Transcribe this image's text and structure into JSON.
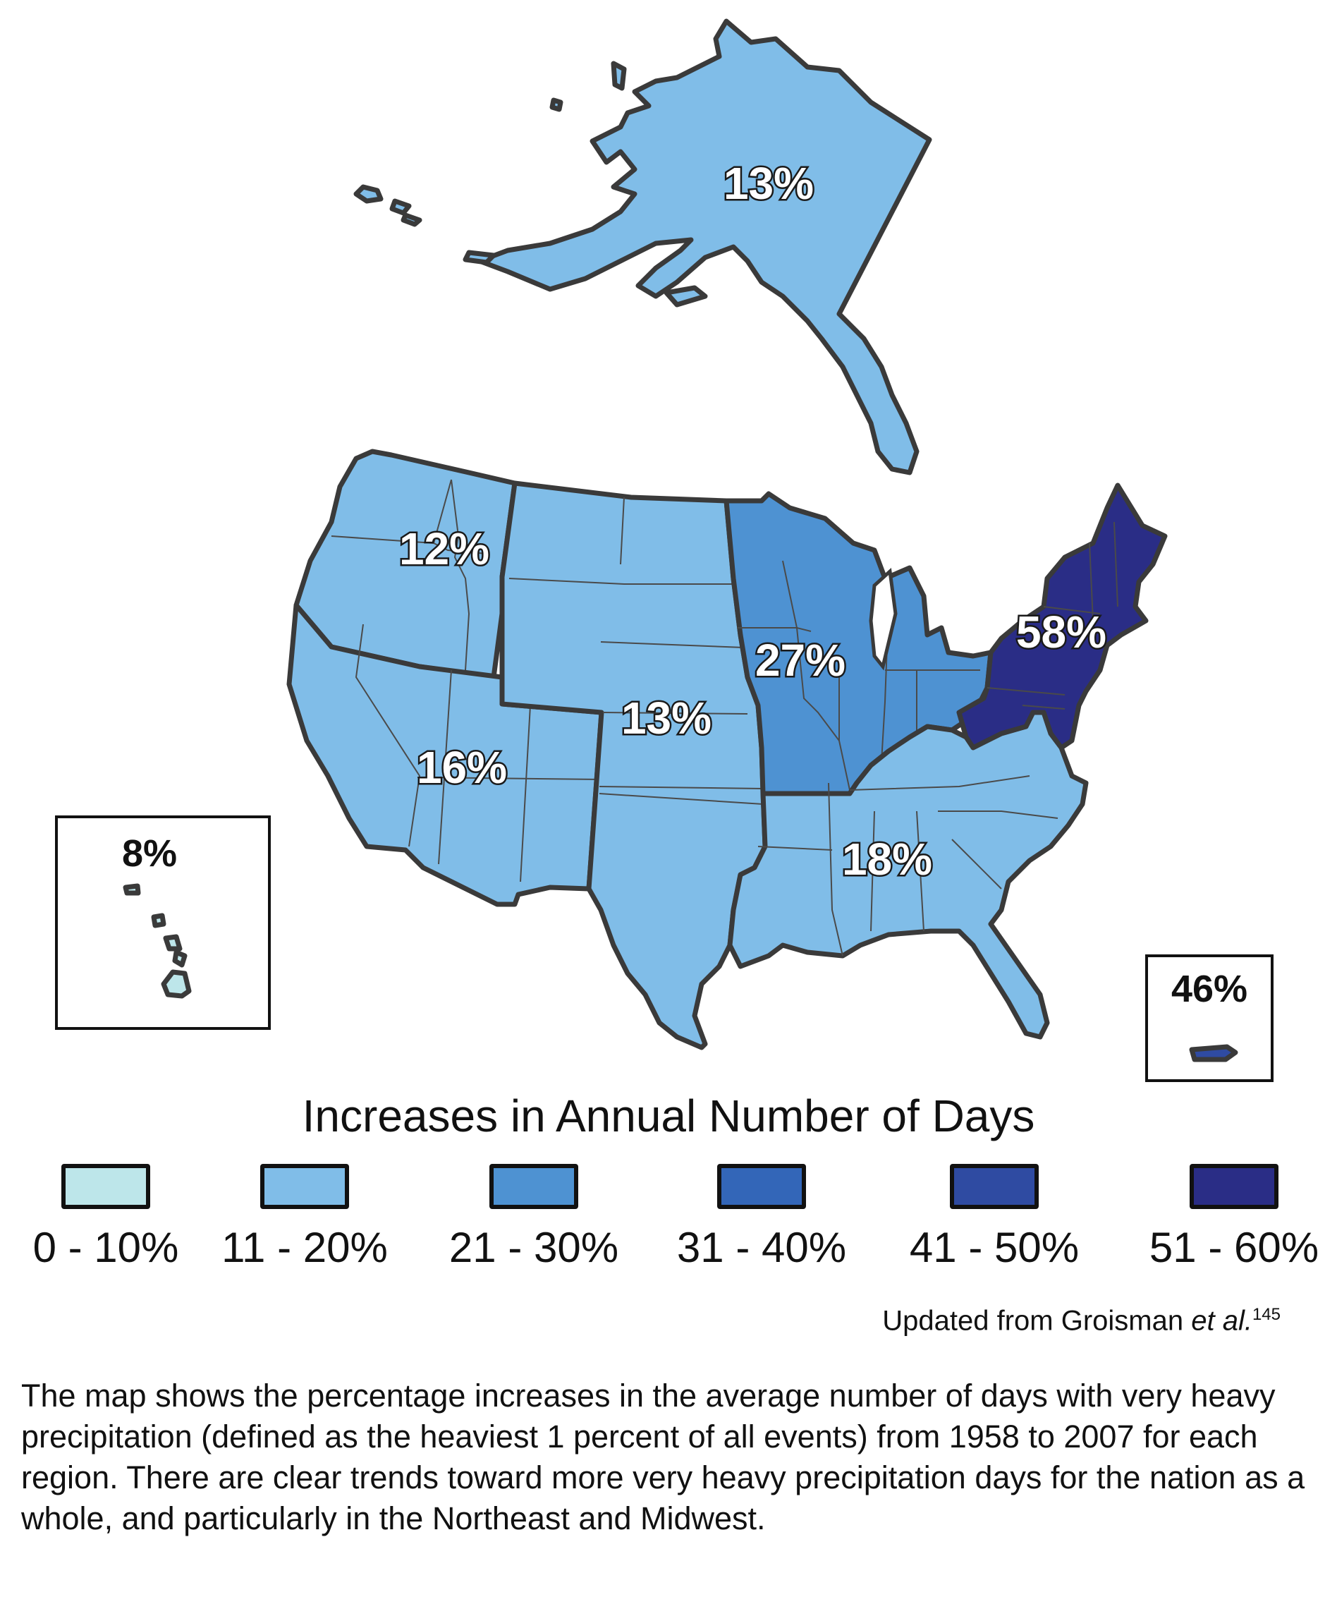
{
  "map": {
    "regions": [
      {
        "id": "alaska",
        "label": "13%",
        "color": "#80BDE8"
      },
      {
        "id": "northwest",
        "label": "12%",
        "color": "#80BDE8"
      },
      {
        "id": "southwest",
        "label": "16%",
        "color": "#80BDE8"
      },
      {
        "id": "great-plains",
        "label": "13%",
        "color": "#80BDE8"
      },
      {
        "id": "midwest",
        "label": "27%",
        "color": "#4E92D2"
      },
      {
        "id": "northeast",
        "label": "58%",
        "color": "#2A2D86"
      },
      {
        "id": "southeast",
        "label": "18%",
        "color": "#80BDE8"
      },
      {
        "id": "hawaii",
        "label": "8%",
        "color": "#BDE6EA"
      },
      {
        "id": "puerto-rico",
        "label": "46%",
        "color": "#2F4BA2"
      }
    ]
  },
  "legend": {
    "title": "Increases in Annual Number of Days",
    "items": [
      {
        "label": "0 - 10%",
        "color": "#BDE6EA"
      },
      {
        "label": "11 - 20%",
        "color": "#80BDE8"
      },
      {
        "label": "21 - 30%",
        "color": "#4E92D2"
      },
      {
        "label": "31 - 40%",
        "color": "#3366B8"
      },
      {
        "label": "41 - 50%",
        "color": "#2F4BA2"
      },
      {
        "label": "51 - 60%",
        "color": "#2A2D86"
      }
    ]
  },
  "source": {
    "text": "Updated from Groisman ",
    "italic": "et al.",
    "ref": "145"
  },
  "caption": "The map shows the percentage increases in the average number of days with very heavy precipitation (defined as the heaviest 1 percent of all events) from 1958 to 2007 for each region. There are clear trends toward more very heavy precipitation days for the nation as a whole, and particularly in the Northeast and Midwest."
}
